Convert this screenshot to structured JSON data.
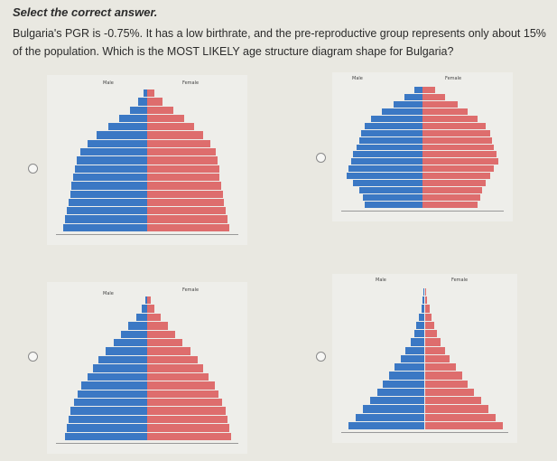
{
  "instruction": "Select the correct answer.",
  "question": "Bulgaria's PGR is -0.75%. It has a low birthrate, and the pre-reproductive group represents only about 15% of the population. Which is the MOST LIKELY age structure diagram shape for Bulgaria?",
  "options": [
    {
      "id": "A",
      "male_label": "Male",
      "female_label": "Female",
      "male": [
        0.2,
        0.5,
        1.0,
        1.6,
        2.2,
        2.9,
        3.4,
        3.8,
        4.0,
        4.1,
        4.2,
        4.3,
        4.4,
        4.5,
        4.6,
        4.7,
        4.8
      ],
      "female": [
        0.4,
        0.9,
        1.5,
        2.1,
        2.7,
        3.2,
        3.6,
        3.9,
        4.0,
        4.1,
        4.1,
        4.2,
        4.3,
        4.4,
        4.5,
        4.6,
        4.7
      ]
    },
    {
      "id": "B",
      "male_label": "Male",
      "female_label": "Female",
      "male": [
        0.4,
        0.9,
        1.4,
        2.0,
        2.5,
        2.8,
        3.0,
        3.1,
        3.2,
        3.4,
        3.5,
        3.6,
        3.7,
        3.4,
        3.1,
        2.9,
        2.8
      ],
      "female": [
        0.6,
        1.1,
        1.7,
        2.2,
        2.7,
        3.1,
        3.3,
        3.4,
        3.5,
        3.6,
        3.7,
        3.5,
        3.3,
        3.1,
        2.9,
        2.8,
        2.7
      ]
    },
    {
      "id": "C",
      "male_label": "Male",
      "female_label": "Female",
      "male": [
        0.1,
        0.3,
        0.6,
        1.0,
        1.4,
        1.8,
        2.2,
        2.6,
        2.9,
        3.2,
        3.5,
        3.7,
        3.9,
        4.1,
        4.2,
        4.3,
        4.4
      ],
      "female": [
        0.2,
        0.4,
        0.7,
        1.1,
        1.5,
        1.9,
        2.3,
        2.7,
        3.0,
        3.3,
        3.6,
        3.8,
        4.0,
        4.2,
        4.3,
        4.4,
        4.5
      ]
    },
    {
      "id": "D",
      "male_label": "Male",
      "female_label": "Female",
      "male": [
        0.1,
        0.2,
        0.3,
        0.5,
        0.7,
        0.9,
        1.2,
        1.6,
        2.0,
        2.5,
        3.0,
        3.5,
        4.0,
        4.6,
        5.2,
        5.8,
        6.4
      ],
      "female": [
        0.1,
        0.2,
        0.4,
        0.6,
        0.8,
        1.0,
        1.3,
        1.7,
        2.1,
        2.6,
        3.1,
        3.6,
        4.1,
        4.7,
        5.3,
        5.9,
        6.5
      ]
    }
  ]
}
